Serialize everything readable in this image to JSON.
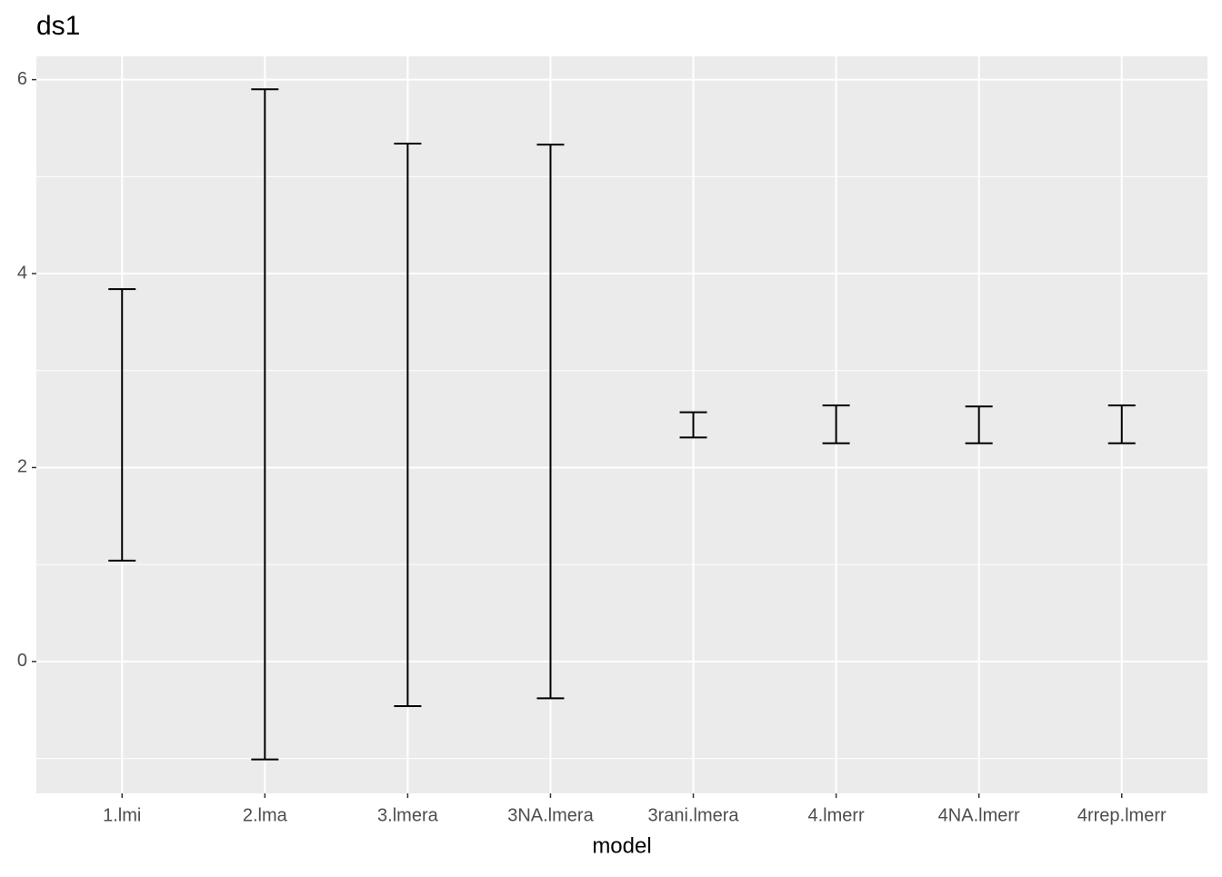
{
  "chart_data": {
    "type": "errorbar",
    "title": "ds1",
    "x_label": "model",
    "categories": [
      "1.lmi",
      "2.lma",
      "3.lmera",
      "3NA.lmera",
      "3rani.lmera",
      "4.lmerr",
      "4NA.lmerr",
      "4rrep.lmerr"
    ],
    "high": [
      3.84,
      5.9,
      5.34,
      5.33,
      2.57,
      2.64,
      2.63,
      2.64
    ],
    "low": [
      1.04,
      -1.01,
      -0.46,
      -0.38,
      2.31,
      2.25,
      2.25,
      2.25
    ],
    "color": "#000000",
    "ylim": [
      -1.36,
      6.24
    ],
    "yticks": [
      0,
      2,
      4,
      6
    ],
    "minor_yticks": [
      -1,
      1,
      3,
      5
    ],
    "grid": true
  }
}
